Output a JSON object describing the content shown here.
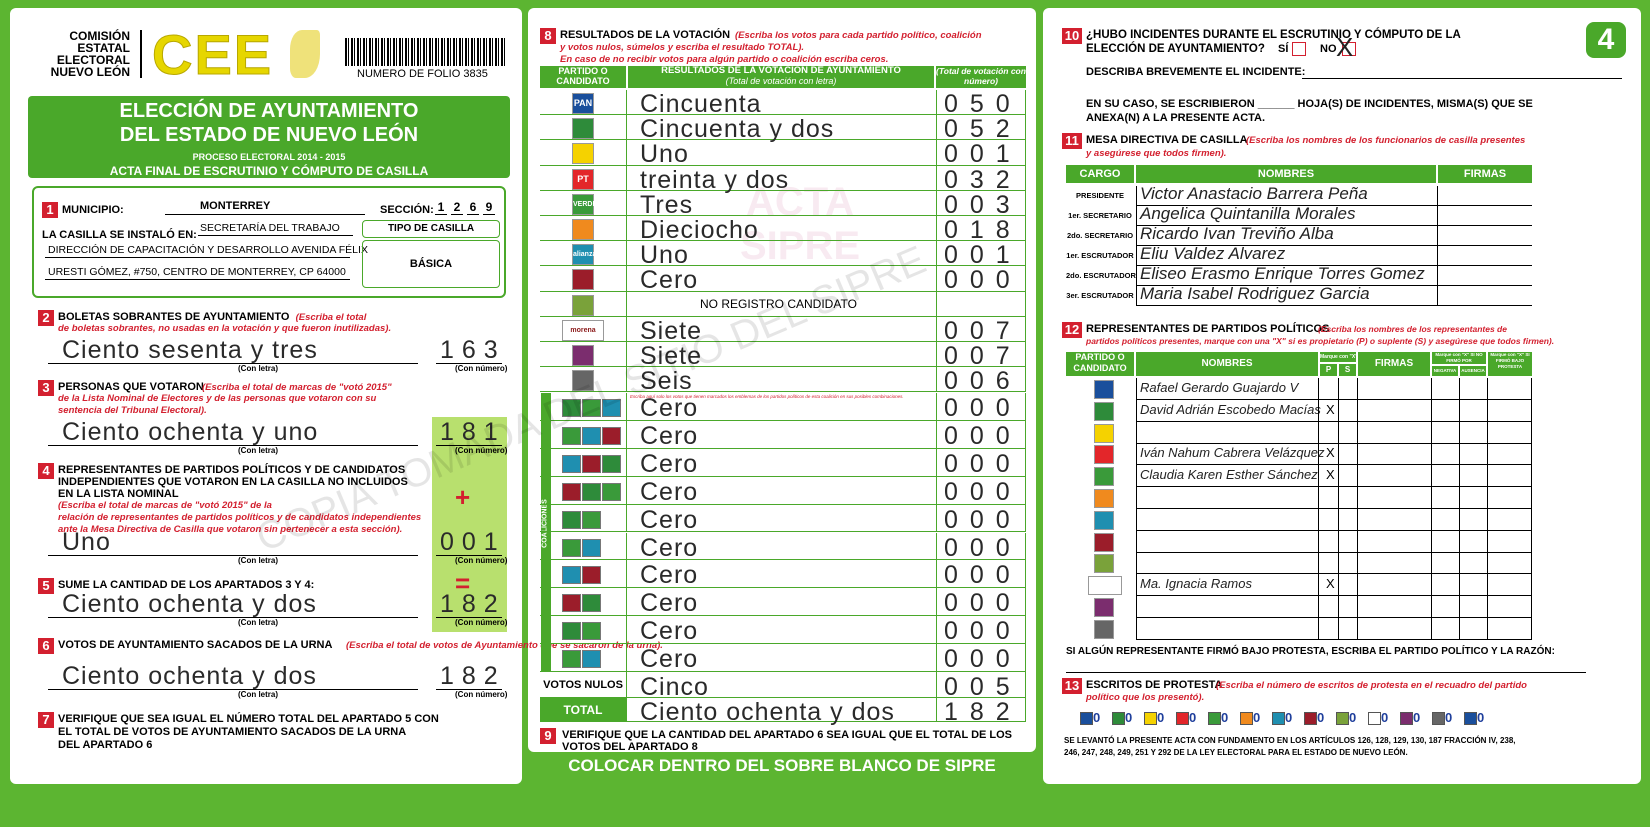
{
  "header": {
    "org": [
      "COMISIÓN",
      "ESTATAL",
      "ELECTORAL",
      "NUEVO LEÓN"
    ],
    "logo": "CEE",
    "folio": "NUMERO DE FOLIO 3835",
    "page_number": "4"
  },
  "title": {
    "lines": [
      "ELECCIÓN DE AYUNTAMIENTO",
      "DEL ESTADO DE NUEVO LEÓN"
    ],
    "process": "PROCESO ELECTORAL 2014 - 2015",
    "subtitle": "ACTA FINAL DE ESCRUTINIO Y CÓMPUTO DE CASILLA"
  },
  "section1": {
    "number": "1",
    "municipio_label": "MUNICIPIO:",
    "municipio": "MONTERREY",
    "seccion_label": "SECCIÓN:",
    "seccion_digits": [
      "1",
      "2",
      "6",
      "9"
    ],
    "location_label": "LA CASILLA SE INSTALÓ EN:",
    "location_lines": [
      "SECRETARÍA DEL TRABAJO",
      "DIRECCIÓN DE CAPACITACIÓN Y DESARROLLO AVENIDA FÉLIX",
      "URESTI GÓMEZ, #750, CENTRO DE MONTERREY, CP 64000"
    ],
    "tipo_label": "TIPO DE CASILLA",
    "tipo": "BÁSICA"
  },
  "captions": {
    "words": "(Con letra)",
    "digits": "(Con número)"
  },
  "operators": {
    "plus": "+",
    "equals": "="
  },
  "tallies": [
    {
      "number": "2",
      "title_lines": [
        "BOLETAS SOBRANTES DE AYUNTAMIENTO"
      ],
      "note_lines": [
        "(Escriba el total",
        "de boletas sobrantes, no usadas en la votación y que fueron inutilizadas)."
      ],
      "words": "Ciento sesenta y tres",
      "digits": "163"
    },
    {
      "number": "3",
      "title_lines": [
        "PERSONAS QUE VOTARON"
      ],
      "note_lines": [
        "(Escriba el total de marcas de \"votó 2015\"",
        "de la Lista Nominal de Electores y de las personas que votaron con su",
        "sentencia del Tribunal Electoral)."
      ],
      "words": "Ciento ochenta y uno",
      "digits": "181"
    },
    {
      "number": "4",
      "title_lines": [
        "REPRESENTANTES DE PARTIDOS POLÍTICOS Y DE CANDIDATOS",
        "INDEPENDIENTES QUE VOTARON EN LA CASILLA NO INCLUIDOS",
        "EN LA LISTA NOMINAL"
      ],
      "note_lines": [
        "(Escriba el total de marcas de \"votó 2015\" de la",
        "relación de representantes de partidos políticos y de candidatos independientes",
        "ante la Mesa Directiva de Casilla que votaron sin pertenecer a esta sección)."
      ],
      "words": "Uno",
      "digits": "001"
    },
    {
      "number": "5",
      "title_lines": [
        "SUME LA CANTIDAD DE LOS APARTADOS 3 Y 4:"
      ],
      "note_lines": [],
      "words": "Ciento ochenta y dos",
      "digits": "182"
    },
    {
      "number": "6",
      "title_lines": [
        "VOTOS DE AYUNTAMIENTO SACADOS DE LA URNA"
      ],
      "note_lines": [
        "(Escriba el total de votos de Ayuntamiento que se sacaron de la urna)."
      ],
      "words": "Ciento ochenta y dos",
      "digits": "182"
    }
  ],
  "section7": {
    "number": "7",
    "lines": [
      "VERIFIQUE QUE SEA IGUAL EL NÚMERO TOTAL DEL APARTADO 5 CON",
      "EL TOTAL DE VOTOS DE AYUNTAMIENTO SACADOS DE LA URNA",
      "DEL APARTADO 6"
    ]
  },
  "section8": {
    "number": "8",
    "title": "RESULTADOS DE LA VOTACIÓN",
    "note_lines": [
      "(Escriba los votos para cada partido político, coalición",
      "y votos nulos, súmelos y escriba el resultado TOTAL).",
      "En caso de no recibir votos para algún partido o coalición escriba ceros."
    ],
    "headers": {
      "party": "PARTIDO O CANDIDATO",
      "results": "RESULTADOS DE LA VOTACIÓN DE AYUNTAMIENTO",
      "words": "(Total de votación con letra)",
      "digits": "(Total de votación con número)"
    },
    "parties": [
      {
        "logo": "PAN",
        "words": "Cincuenta",
        "digits": "050"
      },
      {
        "words": "Cincuenta y dos",
        "digits": "052"
      },
      {
        "words": "Uno",
        "digits": "001"
      },
      {
        "logo": "PT",
        "words": "treinta y dos",
        "digits": "032"
      },
      {
        "logo": "VERDE",
        "words": "Tres",
        "digits": "003"
      },
      {
        "words": "Dieciocho",
        "digits": "018"
      },
      {
        "logo": "alianza",
        "words": "Uno",
        "digits": "001"
      },
      {
        "words": "Cero",
        "digits": "000"
      },
      {
        "words": "NO REGISTRO CANDIDATO"
      },
      {
        "logo": "morena",
        "words": "Siete",
        "digits": "007"
      },
      {
        "words": "Siete",
        "digits": "007"
      },
      {
        "words": "Seis",
        "digits": "006"
      }
    ],
    "coalition_label": "COALICIONES",
    "coalition_note": "Escriba aquí solo los votos que tienen marcados los emblemas de los partidos políticos de esta coalición en sus posibles combinaciones.",
    "coalitions": [
      {
        "words": "Cero",
        "digits": "000"
      },
      {
        "words": "Cero",
        "digits": "000"
      },
      {
        "words": "Cero",
        "digits": "000"
      },
      {
        "words": "Cero",
        "digits": "000"
      },
      {
        "words": "Cero",
        "digits": "000"
      },
      {
        "words": "Cero",
        "digits": "000"
      },
      {
        "words": "Cero",
        "digits": "000"
      },
      {
        "words": "Cero",
        "digits": "000"
      },
      {
        "words": "Cero",
        "digits": "000"
      },
      {
        "words": "Cero",
        "digits": "000"
      }
    ],
    "null_votes": {
      "label": "VOTOS NULOS",
      "words": "Cinco",
      "digits": "005"
    },
    "total": {
      "label": "TOTAL",
      "words": "Ciento ochenta y dos",
      "digits": "182"
    }
  },
  "section9": {
    "number": "9",
    "lines": [
      "VERIFIQUE QUE LA CANTIDAD DEL APARTADO 6 SEA IGUAL QUE EL TOTAL DE LOS",
      "VOTOS DEL APARTADO 8"
    ]
  },
  "section10": {
    "number": "10",
    "question_lines": [
      "¿HUBO INCIDENTES DURANTE EL ESCRUTINIO Y CÓMPUTO DE LA",
      "ELECCIÓN DE AYUNTAMIENTO?"
    ],
    "yes": "SÍ",
    "no": "NO",
    "mark": "X",
    "describe": "DESCRIBA BREVEMENTE EL INCIDENTE:",
    "sheets_lines": [
      "EN SU CASO, SE ESCRIBIERON ______ HOJA(S) DE INCIDENTES, MISMA(S) QUE SE",
      "ANEXA(N) A LA PRESENTE ACTA."
    ]
  },
  "section11": {
    "number": "11",
    "title": "MESA DIRECTIVA DE CASILLA",
    "note_lines": [
      "(Escriba los nombres de los funcionarios de casilla presentes",
      "y asegúrese que todos firmen)."
    ],
    "headers": [
      "CARGO",
      "NOMBRES",
      "FIRMAS"
    ],
    "officials": [
      {
        "role": "PRESIDENTE",
        "name": "Victor Anastacio Barrera Peña"
      },
      {
        "role": "1er. SECRETARIO",
        "name": "Angelica Quintanilla Morales"
      },
      {
        "role": "2do. SECRETARIO",
        "name": "Ricardo Ivan Treviño Alba"
      },
      {
        "role": "1er. ESCRUTADOR",
        "name": "Eliu Valdez Alvarez"
      },
      {
        "role": "2do. ESCRUTADOR",
        "name": "Eliseo Erasmo Enrique Torres Gomez"
      },
      {
        "role": "3er. ESCRUTADOR",
        "name": "Maria Isabel Rodriguez Garcia"
      }
    ]
  },
  "section12": {
    "number": "12",
    "title": "REPRESENTANTES DE PARTIDOS POLÍTICOS",
    "note_lines": [
      "(Escriba los nombres de los representantes de",
      "partidos políticos presentes, marque con una \"X\" si es propietario (P) o suplente (S) y asegúrese que todos firmen)."
    ],
    "headers": {
      "party": "PARTIDO O CANDIDATO",
      "names": "NOMBRES",
      "mark": "Marque con \"X\"",
      "p": "P",
      "s": "S",
      "signatures": "FIRMAS",
      "refused": "Marque con \"X\" SI NO FIRMÓ POR",
      "negativa": "NEGATIVA",
      "ausencia": "AUSENCIA",
      "protest": "Marque con \"X\" SI FIRMÓ BAJO PROTESTA"
    },
    "representatives": [
      {
        "name": "Rafael Gerardo Guajardo V"
      },
      {
        "name": "David Adrián Escobedo Macías",
        "p": "X"
      },
      {},
      {
        "name": "Iván Nahum Cabrera Velázquez",
        "p": "X"
      },
      {
        "name": "Claudia Karen Esther Sánchez",
        "p": "X"
      },
      {},
      {},
      {},
      {},
      {
        "name": "Ma. Ignacia Ramos",
        "p": "X"
      },
      {},
      {}
    ],
    "protest_line": "SI ALGÚN REPRESENTANTE FIRMÓ BAJO PROTESTA, ESCRIBA EL PARTIDO POLÍTICO Y LA RAZÓN:"
  },
  "section13": {
    "number": "13",
    "title": "ESCRITOS DE PROTESTA",
    "note_lines": [
      "(Escriba el número de escritos de protesta en el recuadro del partido",
      "político que los presentó)."
    ],
    "counts": [
      0,
      0,
      0,
      0,
      0,
      0,
      0,
      0,
      0,
      0,
      0,
      0,
      0
    ],
    "legal_lines": [
      "SE LEVANTÓ LA PRESENTE ACTA CON FUNDAMENTO EN LOS ARTÍCULOS 126, 128, 129, 130, 187 FRACCIÓN IV, 238,",
      "246, 247, 248, 249, 251 Y 292 DE LA LEY ELECTORAL PARA EL ESTADO DE NUEVO LEÓN."
    ]
  },
  "footer": "COLOCAR DENTRO DEL SOBRE BLANCO DE SIPRE",
  "watermarks": [
    "ACTA SIPRE",
    "COPIA TOMADA DEL SITIO DEL SIPRE"
  ]
}
